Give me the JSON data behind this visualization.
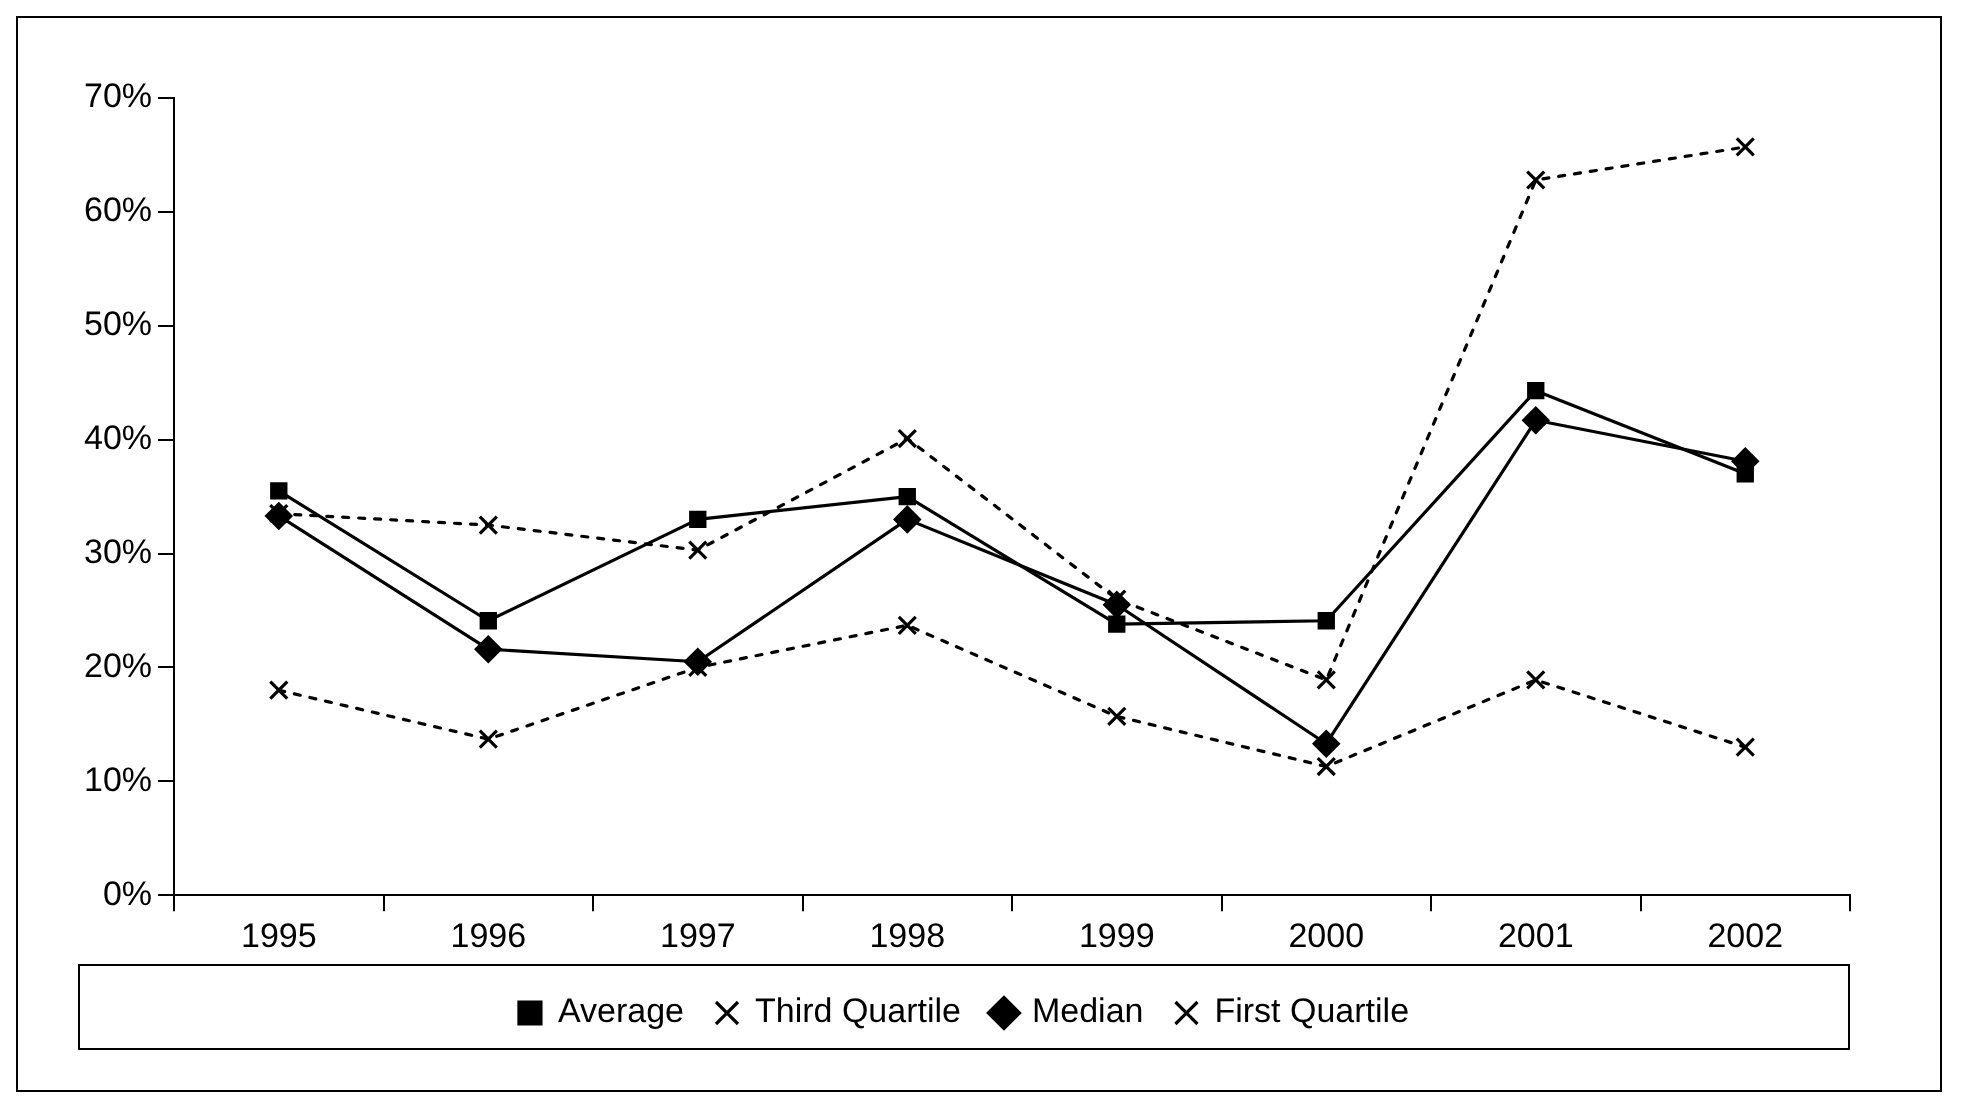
{
  "chart_data": {
    "type": "line",
    "categories": [
      "1995",
      "1996",
      "1997",
      "1998",
      "1999",
      "2000",
      "2001",
      "2002"
    ],
    "series": [
      {
        "name": "Average",
        "color": "#000000",
        "marker": "square",
        "line_style": "solid",
        "values": [
          35.5,
          24.1,
          33,
          35,
          23.8,
          24.1,
          44.3,
          37
        ]
      },
      {
        "name": "Third Quartile",
        "color": "#000000",
        "marker": "cross",
        "line_style": "dotted",
        "values": [
          33.5,
          32.5,
          30.3,
          40.1,
          26,
          18.9,
          62.8,
          65.7
        ]
      },
      {
        "name": "Median",
        "color": "#000000",
        "marker": "diamond",
        "line_style": "solid",
        "values": [
          33.3,
          21.6,
          20.5,
          33,
          25.5,
          13.3,
          41.7,
          38.1
        ]
      },
      {
        "name": "First Quartile",
        "color": "#000000",
        "marker": "cross",
        "line_style": "dotted",
        "values": [
          18,
          13.7,
          20,
          23.7,
          15.7,
          11.3,
          18.9,
          13
        ]
      }
    ],
    "ylim": [
      0,
      70
    ],
    "yticks": [
      {
        "value": 0,
        "label": "0%"
      },
      {
        "value": 10,
        "label": "10%"
      },
      {
        "value": 20,
        "label": "20%"
      },
      {
        "value": 30,
        "label": "30%"
      },
      {
        "value": 40,
        "label": "40%"
      },
      {
        "value": 50,
        "label": "50%"
      },
      {
        "value": 60,
        "label": "60%"
      },
      {
        "value": 70,
        "label": "70%"
      }
    ],
    "grid": false,
    "legend": "bottom"
  }
}
